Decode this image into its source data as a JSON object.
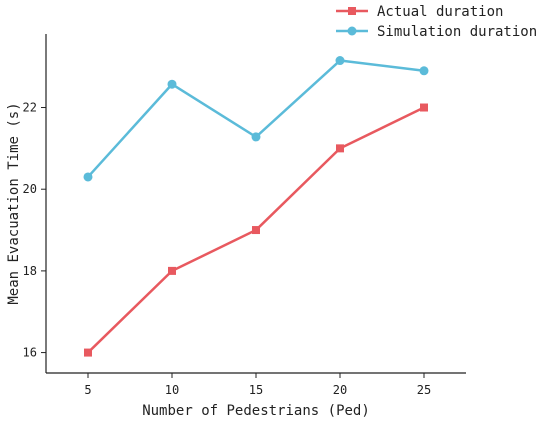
{
  "chart_data": {
    "type": "line",
    "x": [
      5,
      10,
      15,
      20,
      25
    ],
    "xlabel": "Number of Pedestrians (Ped)",
    "ylabel": "Mean Evacuation Time (s)",
    "xlim": [
      2.5,
      27.5
    ],
    "ylim": [
      15.5,
      23.8
    ],
    "xticks": [
      5,
      10,
      15,
      20,
      25
    ],
    "yticks": [
      16,
      18,
      20,
      22
    ],
    "grid": false,
    "legend_position": "top-right",
    "series": [
      {
        "name": "Actual duration",
        "values": [
          16,
          18,
          19,
          21,
          22
        ],
        "color": "#e8595f",
        "marker": "square"
      },
      {
        "name": "Simulation duration",
        "values": [
          20.3,
          22.57,
          21.28,
          23.15,
          22.9
        ],
        "color": "#5bbbd9",
        "marker": "circle"
      }
    ]
  }
}
